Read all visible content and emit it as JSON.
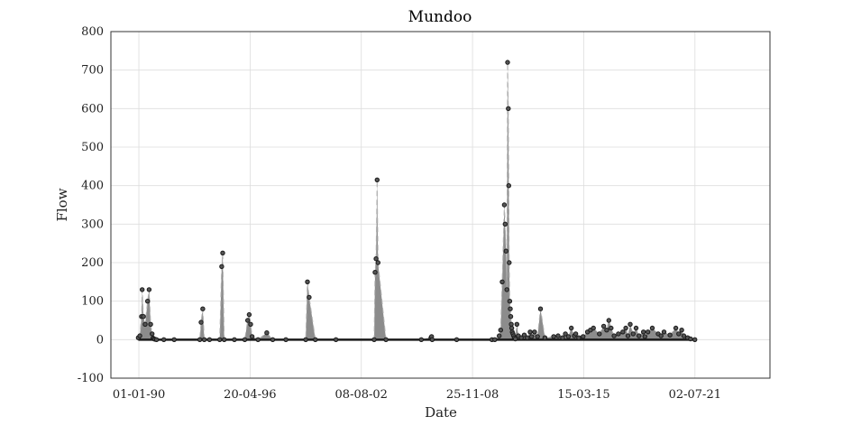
{
  "chart_data": {
    "type": "line",
    "title": "Mundoo",
    "xlabel": "Date",
    "ylabel": "Flow",
    "xlim": [
      "1988-06-01",
      "2025-10-01"
    ],
    "ylim": [
      -100,
      800
    ],
    "x_ticks": [
      "01-01-90",
      "20-04-96",
      "08-08-02",
      "25-11-08",
      "15-03-15",
      "02-07-21"
    ],
    "y_ticks": [
      "-100",
      "0",
      "100",
      "200",
      "300",
      "400",
      "500",
      "600",
      "700",
      "800"
    ],
    "grid": true,
    "legend": "none",
    "colors": {
      "marker": "#1a1a1a",
      "fill": "#8c8c8c",
      "dashed_line": "#b0b0b0",
      "grid": "#dddddd",
      "axis": "#333333"
    },
    "series": [
      {
        "x": [
          "1989-12-20",
          "1990-01-20",
          "1990-02-25",
          "1990-03-10",
          "1990-04-05",
          "1990-05-10",
          "1990-07-01",
          "1990-08-01",
          "1990-09-01",
          "1990-10-01",
          "1990-10-20",
          "1990-11-10",
          "1990-12-01",
          "1991-01-01",
          "1991-06-01",
          "1992-01-01",
          "1993-06-15",
          "1993-07-10",
          "1993-08-15",
          "1993-09-15",
          "1994-01-01",
          "1994-08-01",
          "1994-09-10",
          "1994-10-01",
          "1994-11-01",
          "1995-06-01",
          "1996-01-01",
          "1996-03-01",
          "1996-04-01",
          "1996-05-01",
          "1996-06-01",
          "1996-10-01",
          "1997-04-01",
          "1997-08-01",
          "1998-05-01",
          "1999-06-15",
          "1999-07-20",
          "1999-08-25",
          "2000-01-01",
          "2001-03-01",
          "2003-05-01",
          "2003-05-20",
          "2003-06-10",
          "2003-07-01",
          "2003-07-20",
          "2004-01-01",
          "2006-01-01",
          "2006-07-20",
          "2006-08-01",
          "2006-08-15",
          "2008-01-01",
          "2010-01-01",
          "2010-03-01",
          "2010-06-01",
          "2010-07-01",
          "2010-08-01",
          "2010-09-15",
          "2010-10-01",
          "2010-10-20",
          "2010-11-05",
          "2010-11-20",
          "2010-12-05",
          "2010-12-15",
          "2010-12-25",
          "2011-01-05",
          "2011-01-15",
          "2011-01-25",
          "2011-02-05",
          "2011-02-15",
          "2011-02-25",
          "2011-03-10",
          "2011-03-25",
          "2011-04-10",
          "2011-05-01",
          "2011-06-01",
          "2011-07-01",
          "2011-09-01",
          "2011-11-01",
          "2012-01-01",
          "2012-03-01",
          "2012-04-01",
          "2012-06-01",
          "2012-08-01",
          "2012-10-01",
          "2013-01-01",
          "2013-07-01",
          "2013-10-01",
          "2014-01-01",
          "2014-03-01",
          "2014-05-01",
          "2014-07-01",
          "2014-09-01",
          "2014-10-01",
          "2014-12-01",
          "2015-03-01",
          "2015-06-01",
          "2015-08-01",
          "2015-10-01",
          "2016-02-01",
          "2016-05-01",
          "2016-07-01",
          "2016-08-15",
          "2016-10-01",
          "2016-12-01",
          "2017-03-01",
          "2017-06-01",
          "2017-08-01",
          "2017-09-15",
          "2017-11-01",
          "2018-01-01",
          "2018-03-01",
          "2018-05-01",
          "2018-08-01",
          "2018-09-01",
          "2018-11-01",
          "2019-02-01",
          "2019-06-01",
          "2019-08-01",
          "2019-10-01",
          "2020-02-01",
          "2020-06-01",
          "2020-08-01",
          "2020-10-01",
          "2020-11-15",
          "2021-02-01",
          "2021-04-01",
          "2021-07-01"
        ],
        "y": [
          5,
          10,
          60,
          130,
          60,
          40,
          100,
          130,
          40,
          15,
          4,
          2,
          1,
          0,
          0,
          0,
          0,
          45,
          80,
          0,
          0,
          0,
          190,
          225,
          0,
          0,
          0,
          50,
          65,
          40,
          8,
          0,
          18,
          0,
          0,
          0,
          150,
          110,
          0,
          0,
          0,
          175,
          210,
          415,
          200,
          0,
          0,
          5,
          8,
          0,
          0,
          0,
          0,
          10,
          25,
          150,
          350,
          300,
          230,
          130,
          720,
          600,
          400,
          200,
          100,
          80,
          60,
          40,
          30,
          20,
          15,
          10,
          5,
          2,
          40,
          10,
          5,
          12,
          5,
          20,
          8,
          20,
          8,
          80,
          5,
          8,
          10,
          5,
          15,
          8,
          30,
          10,
          15,
          5,
          8,
          20,
          25,
          30,
          15,
          35,
          25,
          50,
          30,
          10,
          15,
          20,
          30,
          10,
          40,
          15,
          30,
          10,
          20,
          8,
          20,
          30,
          15,
          10,
          20,
          12,
          30,
          15,
          25,
          10,
          5,
          2,
          0
        ]
      }
    ]
  }
}
